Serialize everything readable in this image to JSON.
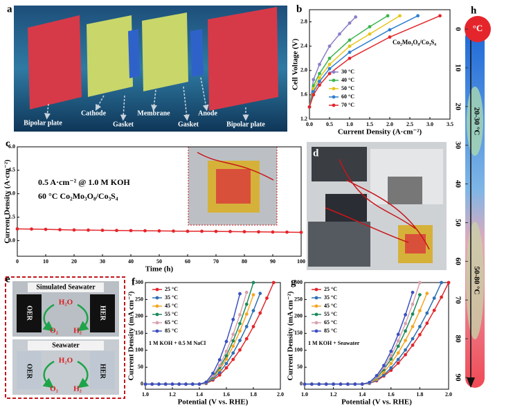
{
  "panel_labels": [
    "a",
    "b",
    "c",
    "d",
    "e",
    "f",
    "g",
    "h"
  ],
  "diagram": {
    "labels": [
      "Bipolar plate",
      "Cathode",
      "Gasket",
      "Membrane",
      "Gasket",
      "Anode",
      "Bipolar plate"
    ]
  },
  "seawater": [
    {
      "title": "Simulated Seawater",
      "reactant": "H₂O",
      "left": "OER",
      "right": "HER",
      "products": [
        "O₂",
        "H₂"
      ]
    },
    {
      "title": "Seawater",
      "reactant": "H₂O",
      "left": "OER",
      "right": "HER",
      "products": [
        "O₂",
        "H₂"
      ]
    }
  ],
  "thermometer": {
    "unit": "°C",
    "ticks": [
      0,
      10,
      20,
      30,
      40,
      50,
      60,
      70,
      80,
      90
    ],
    "ranges": [
      "20-30 °C",
      "50-80 °C"
    ]
  },
  "chart_data": [
    {
      "type": "line",
      "xlabel": "Current Density (A·cm⁻²)",
      "ylabel": "Cell Voltage (V)",
      "annotation": "Co₂Mo₃O₈/Co₃S₄",
      "xlim": [
        0,
        3.5
      ],
      "ylim": [
        1.2,
        3.0
      ],
      "xticks": [
        {
          "value": 0,
          "label": "0.0"
        },
        0.5,
        {
          "value": 1,
          "label": "1.0"
        },
        1.5,
        {
          "value": 2,
          "label": "2.0"
        },
        2.5,
        {
          "value": 3,
          "label": "3.0"
        },
        3.5
      ],
      "yticks": [
        1.2,
        1.6,
        {
          "value": 2,
          "label": "2.0"
        },
        2.4,
        2.8
      ],
      "legend": "lower left",
      "series": [
        {
          "name": "30 °C",
          "color": "#8a7fc8",
          "x": [
            0,
            0.1,
            0.25,
            0.5,
            0.75,
            1.0,
            1.15
          ],
          "values": [
            1.4,
            1.85,
            2.1,
            2.4,
            2.6,
            2.78,
            2.88
          ]
        },
        {
          "name": "40 °C",
          "color": "#3cb44b",
          "x": [
            0,
            0.1,
            0.25,
            0.5,
            1.0,
            1.5,
            1.95
          ],
          "values": [
            1.4,
            1.75,
            1.95,
            2.2,
            2.5,
            2.72,
            2.9
          ]
        },
        {
          "name": "50 °C",
          "color": "#e6c619",
          "x": [
            0,
            0.1,
            0.25,
            0.5,
            1.0,
            1.5,
            2.25
          ],
          "values": [
            1.4,
            1.7,
            1.88,
            2.1,
            2.4,
            2.6,
            2.9
          ]
        },
        {
          "name": "60 °C",
          "color": "#2f7fd0",
          "x": [
            0,
            0.1,
            0.25,
            0.5,
            1.0,
            2.0,
            2.7
          ],
          "values": [
            1.4,
            1.65,
            1.82,
            2.03,
            2.3,
            2.67,
            2.9
          ]
        },
        {
          "name": "70 °C",
          "color": "#e3262b",
          "x": [
            0,
            0.1,
            0.25,
            0.5,
            1.0,
            2.0,
            3.25
          ],
          "values": [
            1.4,
            1.6,
            1.76,
            1.95,
            2.2,
            2.55,
            2.9
          ]
        }
      ]
    },
    {
      "type": "line",
      "xlabel": "Time (h)",
      "ylabel": "Current Density (A·cm⁻²)",
      "annotations": [
        "0.5 A·cm⁻² @ 1.0 M KOH",
        "60 °C  Co₂Mo₃O₈/Co₃S₄"
      ],
      "xlim": [
        0,
        100
      ],
      "ylim": [
        -1,
        6
      ],
      "xticks": [
        0,
        10,
        20,
        30,
        40,
        50,
        60,
        70,
        80,
        90,
        100
      ],
      "yticks": [
        {
          "value": 0,
          "label": "0.0"
        },
        1.5,
        {
          "value": 3,
          "label": "3.0"
        },
        4.5,
        {
          "value": 6,
          "label": "6.0"
        }
      ],
      "x": [
        0,
        5,
        10,
        15,
        20,
        25,
        30,
        35,
        40,
        45,
        50,
        55,
        60,
        65,
        70,
        75,
        80,
        85,
        90,
        95,
        100
      ],
      "series": [
        {
          "color": "#e3262b",
          "values": [
            0.75,
            0.74,
            0.72,
            0.7,
            0.68,
            0.67,
            0.66,
            0.65,
            0.64,
            0.63,
            0.62,
            0.61,
            0.6,
            0.6,
            0.59,
            0.58,
            0.57,
            0.56,
            0.55,
            0.54,
            0.53
          ]
        }
      ]
    },
    {
      "type": "line",
      "xlabel": "Potential (V vs. RHE)",
      "ylabel": "Current Density (mA cm⁻²)",
      "annotation": "1 M KOH + 0.5 M NaCl",
      "xlim": [
        1.0,
        2.0
      ],
      "ylim": [
        -15,
        300
      ],
      "xticks": [
        {
          "value": 1,
          "label": "1.0"
        },
        1.2,
        1.4,
        1.6,
        1.8,
        {
          "value": 2,
          "label": "2.0"
        }
      ],
      "yticks": [
        0,
        50,
        100,
        150,
        200,
        250,
        300
      ],
      "legend": "upper left",
      "x": [
        1.0,
        1.05,
        1.1,
        1.15,
        1.2,
        1.25,
        1.3,
        1.35,
        1.4,
        1.45,
        1.5,
        1.55,
        1.6,
        1.65,
        1.7,
        1.75,
        1.8,
        1.85,
        1.9,
        1.95,
        2.0
      ],
      "series": [
        {
          "name": "25 °C",
          "color": "#e3262b",
          "values": [
            0,
            0,
            0,
            0,
            0,
            0,
            0,
            0,
            0,
            2,
            12,
            27,
            48,
            73,
            101,
            134,
            170,
            210,
            254,
            300,
            null
          ]
        },
        {
          "name": "35 °C",
          "color": "#2f6fb5",
          "values": [
            0,
            0,
            0,
            0,
            0,
            0,
            0,
            0,
            0,
            3,
            15,
            35,
            61,
            92,
            129,
            170,
            217,
            268,
            null,
            null,
            null
          ]
        },
        {
          "name": "45 °C",
          "color": "#f5a623",
          "values": [
            0,
            0,
            0,
            0,
            0,
            0,
            0,
            0,
            0,
            4,
            19,
            43,
            74,
            112,
            157,
            207,
            264,
            null,
            null,
            null,
            null
          ]
        },
        {
          "name": "55 °C",
          "color": "#1a8a5a",
          "values": [
            0,
            0,
            0,
            0,
            0,
            0,
            0,
            0,
            0,
            4,
            21,
            49,
            84,
            128,
            179,
            236,
            300,
            null,
            null,
            null,
            null
          ]
        },
        {
          "name": "65 °C",
          "color": "#d9a0ad",
          "values": [
            0,
            0,
            0,
            0,
            0,
            0,
            0,
            0,
            0,
            5,
            25,
            55,
            97,
            147,
            205,
            271,
            null,
            null,
            null,
            null,
            null
          ]
        },
        {
          "name": "85 °C",
          "color": "#3a4fc1",
          "values": [
            0,
            0,
            0,
            0,
            0,
            0,
            0,
            0,
            0,
            6,
            32,
            72,
            126,
            191,
            267,
            null,
            null,
            null,
            null,
            null,
            null
          ]
        }
      ]
    },
    {
      "type": "line",
      "xlabel": "Potential (V vs. RHE)",
      "ylabel": "Current Density (mA cm⁻²)",
      "annotation": "1 M KOH + Seawater",
      "xlim": [
        1.0,
        2.0
      ],
      "ylim": [
        -15,
        300
      ],
      "xticks": [
        {
          "value": 1,
          "label": "1.0"
        },
        1.2,
        1.4,
        1.6,
        1.8,
        {
          "value": 2,
          "label": "2.0"
        }
      ],
      "yticks": [
        0,
        50,
        100,
        150,
        200,
        250,
        300
      ],
      "legend": "upper left",
      "x": [
        1.0,
        1.05,
        1.1,
        1.15,
        1.2,
        1.25,
        1.3,
        1.35,
        1.4,
        1.45,
        1.5,
        1.55,
        1.6,
        1.65,
        1.7,
        1.75,
        1.8,
        1.85,
        1.9,
        1.95,
        2.0
      ],
      "series": [
        {
          "name": "25 °C",
          "color": "#e3262b",
          "values": [
            0,
            0,
            0,
            0,
            0,
            0,
            0,
            0,
            0,
            2,
            10,
            24,
            41,
            62,
            87,
            115,
            146,
            180,
            218,
            257,
            300
          ]
        },
        {
          "name": "35 °C",
          "color": "#2f6fb5",
          "values": [
            0,
            0,
            0,
            0,
            0,
            0,
            0,
            0,
            0,
            2,
            12,
            27,
            48,
            73,
            101,
            134,
            170,
            210,
            254,
            300,
            null
          ]
        },
        {
          "name": "45 °C",
          "color": "#f5a623",
          "values": [
            0,
            0,
            0,
            0,
            0,
            0,
            0,
            0,
            0,
            3,
            15,
            35,
            61,
            92,
            129,
            170,
            217,
            268,
            null,
            null,
            null
          ]
        },
        {
          "name": "55 °C",
          "color": "#1a8a5a",
          "values": [
            0,
            0,
            0,
            0,
            0,
            0,
            0,
            0,
            0,
            4,
            19,
            43,
            74,
            112,
            157,
            207,
            264,
            null,
            null,
            null,
            null
          ]
        },
        {
          "name": "65 °C",
          "color": "#d9a0ad",
          "values": [
            0,
            0,
            0,
            0,
            0,
            0,
            0,
            0,
            0,
            4,
            21,
            49,
            84,
            128,
            179,
            236,
            300,
            null,
            null,
            null,
            null
          ]
        },
        {
          "name": "85 °C",
          "color": "#3a4fc1",
          "values": [
            0,
            0,
            0,
            0,
            0,
            0,
            0,
            0,
            0,
            5,
            25,
            55,
            97,
            147,
            205,
            271,
            null,
            null,
            null,
            null,
            null
          ]
        }
      ]
    }
  ]
}
